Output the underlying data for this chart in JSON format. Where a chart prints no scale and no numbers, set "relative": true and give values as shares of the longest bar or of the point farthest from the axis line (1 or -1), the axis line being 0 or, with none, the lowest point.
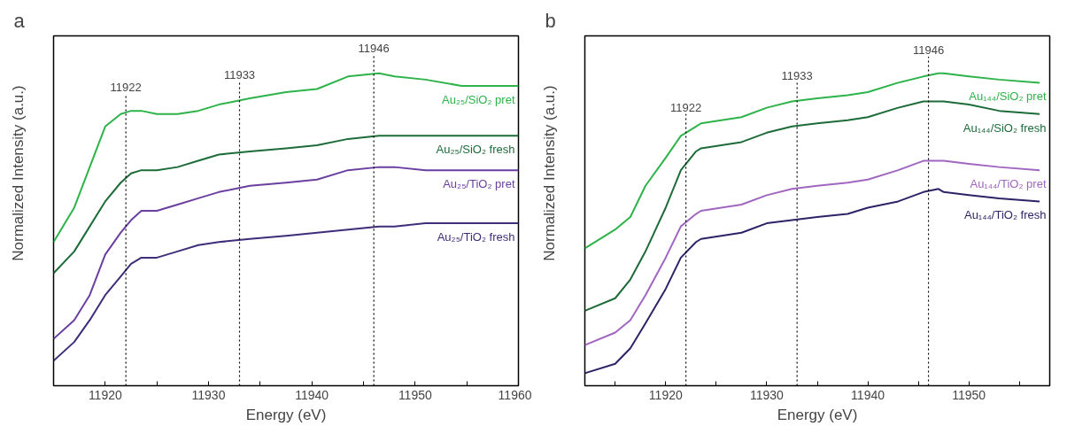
{
  "chart_data": [
    {
      "type": "line",
      "title": "a",
      "xlabel": "Energy (eV)",
      "ylabel": "Normalized Intensity (a.u.)",
      "relative": true,
      "legend": false,
      "grid": false,
      "x": [
        11915,
        11917,
        11918.5,
        11920,
        11921.5,
        11922.5,
        11923.5,
        11925,
        11927,
        11929,
        11931,
        11934,
        11937.5,
        11940.5,
        11943.5,
        11946.5,
        11948,
        11951,
        11954.5,
        11960
      ],
      "xlim": [
        11915,
        11960
      ],
      "xticks": [
        {
          "value": 11915,
          "label": null
        },
        11920,
        {
          "value": 11925,
          "label": null
        },
        11930,
        {
          "value": 11935,
          "label": null
        },
        11940,
        {
          "value": 11945,
          "label": null
        },
        11950,
        {
          "value": 11955,
          "label": null
        },
        11960
      ],
      "series": [
        {
          "name": "Au₂₅/SiO₂ pret",
          "color": "#2db34a",
          "values": [
            0.46,
            0.57,
            0.7,
            0.83,
            0.87,
            0.88,
            0.88,
            0.87,
            0.87,
            0.88,
            0.9,
            0.92,
            0.94,
            0.95,
            0.99,
            1.0,
            0.99,
            0.98,
            0.96,
            0.96
          ]
        },
        {
          "name": "Au₂₅/SiO₂ fresh",
          "color": "#1e6b3a",
          "values": [
            0.36,
            0.43,
            0.51,
            0.59,
            0.65,
            0.68,
            0.69,
            0.69,
            0.7,
            0.72,
            0.74,
            0.75,
            0.76,
            0.77,
            0.79,
            0.8,
            0.8,
            0.8,
            0.8,
            0.8
          ]
        },
        {
          "name": "Au₂₅/TiO₂ pret",
          "color": "#6a3fa0",
          "values": [
            0.15,
            0.21,
            0.29,
            0.42,
            0.49,
            0.53,
            0.56,
            0.56,
            0.58,
            0.6,
            0.62,
            0.64,
            0.65,
            0.66,
            0.69,
            0.7,
            0.7,
            0.69,
            0.69,
            0.69
          ]
        },
        {
          "name": "Au₂₅/TiO₂ fresh",
          "color": "#3f2d7a",
          "values": [
            0.08,
            0.14,
            0.21,
            0.29,
            0.35,
            0.39,
            0.41,
            0.41,
            0.43,
            0.45,
            0.46,
            0.47,
            0.48,
            0.49,
            0.5,
            0.51,
            0.51,
            0.52,
            0.52,
            0.52
          ]
        }
      ],
      "ref_lines": [
        {
          "axis": "x",
          "value": 11922,
          "label": "11922",
          "color": "#000000",
          "line_style": "dotted"
        },
        {
          "axis": "x",
          "value": 11933,
          "label": "11933",
          "color": "#000000",
          "line_style": "dotted"
        },
        {
          "axis": "x",
          "value": 11946,
          "label": "11946",
          "color": "#000000",
          "line_style": "dotted"
        }
      ]
    },
    {
      "type": "line",
      "title": "b",
      "xlabel": "Energy (eV)",
      "ylabel": "Normalized Intensity (a.u.)",
      "relative": true,
      "legend": false,
      "grid": false,
      "x": [
        11912,
        11915,
        11916.5,
        11918,
        11920,
        11921.5,
        11923,
        11923.5,
        11925.5,
        11927.5,
        11930,
        11932.5,
        11935,
        11938,
        11940,
        11943,
        11945.5,
        11947,
        11947.5,
        11950,
        11953,
        11957
      ],
      "xlim": [
        11912,
        11958
      ],
      "xticks": [
        {
          "value": 11915,
          "label": null
        },
        11920,
        {
          "value": 11925,
          "label": null
        },
        11930,
        {
          "value": 11935,
          "label": null
        },
        11940,
        {
          "value": 11945,
          "label": null
        },
        11950,
        {
          "value": 11955,
          "label": null
        }
      ],
      "series": [
        {
          "name": "Au₁₄₄/SiO₂ pret",
          "color": "#2db34a",
          "values": [
            0.44,
            0.5,
            0.54,
            0.64,
            0.73,
            0.8,
            0.83,
            0.84,
            0.85,
            0.86,
            0.89,
            0.91,
            0.92,
            0.93,
            0.94,
            0.97,
            0.99,
            1.0,
            1.0,
            0.99,
            0.98,
            0.97
          ]
        },
        {
          "name": "Au₁₄₄/SiO₂ fresh",
          "color": "#1e6b3a",
          "values": [
            0.24,
            0.28,
            0.34,
            0.43,
            0.57,
            0.69,
            0.75,
            0.76,
            0.77,
            0.78,
            0.81,
            0.83,
            0.84,
            0.85,
            0.86,
            0.89,
            0.91,
            0.91,
            0.91,
            0.9,
            0.88,
            0.87
          ]
        },
        {
          "name": "Au₁₄₄/TiO₂ pret",
          "color": "#a066c0",
          "values": [
            0.13,
            0.17,
            0.21,
            0.29,
            0.41,
            0.51,
            0.55,
            0.56,
            0.57,
            0.58,
            0.61,
            0.63,
            0.64,
            0.65,
            0.66,
            0.69,
            0.72,
            0.72,
            0.72,
            0.71,
            0.7,
            0.69
          ]
        },
        {
          "name": "Au₁₄₄/TiO₂ fresh",
          "color": "#2e2366",
          "values": [
            0.04,
            0.07,
            0.12,
            0.2,
            0.31,
            0.41,
            0.46,
            0.47,
            0.48,
            0.49,
            0.52,
            0.53,
            0.54,
            0.55,
            0.57,
            0.59,
            0.62,
            0.63,
            0.62,
            0.61,
            0.6,
            0.59
          ]
        }
      ],
      "ref_lines": [
        {
          "axis": "x",
          "value": 11922,
          "label": "11922",
          "color": "#000000",
          "line_style": "dotted"
        },
        {
          "axis": "x",
          "value": 11933,
          "label": "11933",
          "color": "#000000",
          "line_style": "dotted"
        },
        {
          "axis": "x",
          "value": 11946,
          "label": "11946",
          "color": "#000000",
          "line_style": "dotted"
        }
      ]
    }
  ]
}
